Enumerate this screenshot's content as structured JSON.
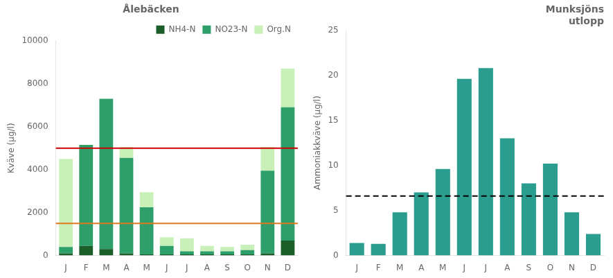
{
  "chart_data": [
    {
      "type": "bar",
      "title": "Ålebäcken",
      "ylabel": "Kväve (µg/l)",
      "categories": [
        "J",
        "F",
        "M",
        "A",
        "M",
        "J",
        "J",
        "A",
        "S",
        "O",
        "N",
        "D"
      ],
      "stacked": true,
      "series": [
        {
          "name": "NH4-N",
          "color": "#1b5e2a",
          "values": [
            100,
            450,
            300,
            100,
            50,
            50,
            50,
            50,
            50,
            50,
            100,
            700
          ]
        },
        {
          "name": "NO23-N",
          "color": "#2e9e6a",
          "values": [
            300,
            4700,
            7000,
            4450,
            2200,
            400,
            150,
            150,
            150,
            200,
            3850,
            6200
          ]
        },
        {
          "name": "Org.N",
          "color": "#c8f0b8",
          "values": [
            4100,
            0,
            0,
            500,
            700,
            400,
            600,
            250,
            200,
            250,
            1100,
            1800
          ]
        }
      ],
      "reference_lines": [
        {
          "value": 5000,
          "color": "#cc0000"
        },
        {
          "value": 1500,
          "color": "#e07820"
        }
      ],
      "ylim": [
        0,
        10000
      ],
      "yticks": [
        0,
        2000,
        4000,
        6000,
        8000,
        10000
      ],
      "grid": false,
      "legend": "upper right"
    },
    {
      "type": "bar",
      "title": "Munksjöns\nutlopp",
      "ylabel": "Ammoniakkväve (µg/l)",
      "categories": [
        "J",
        "F",
        "M",
        "A",
        "M",
        "J",
        "J",
        "A",
        "S",
        "O",
        "N",
        "D"
      ],
      "values": [
        1.4,
        1.3,
        4.8,
        7.0,
        9.6,
        19.6,
        20.8,
        13.0,
        8.0,
        10.2,
        4.8,
        2.4
      ],
      "color": "#2a9d8f",
      "reference_lines": [
        {
          "value": 6.6,
          "color": "#000000",
          "line_style": "dashed"
        }
      ],
      "ylim": [
        0,
        25
      ],
      "yticks": [
        0,
        5,
        10,
        15,
        20,
        25
      ],
      "grid": false
    }
  ]
}
